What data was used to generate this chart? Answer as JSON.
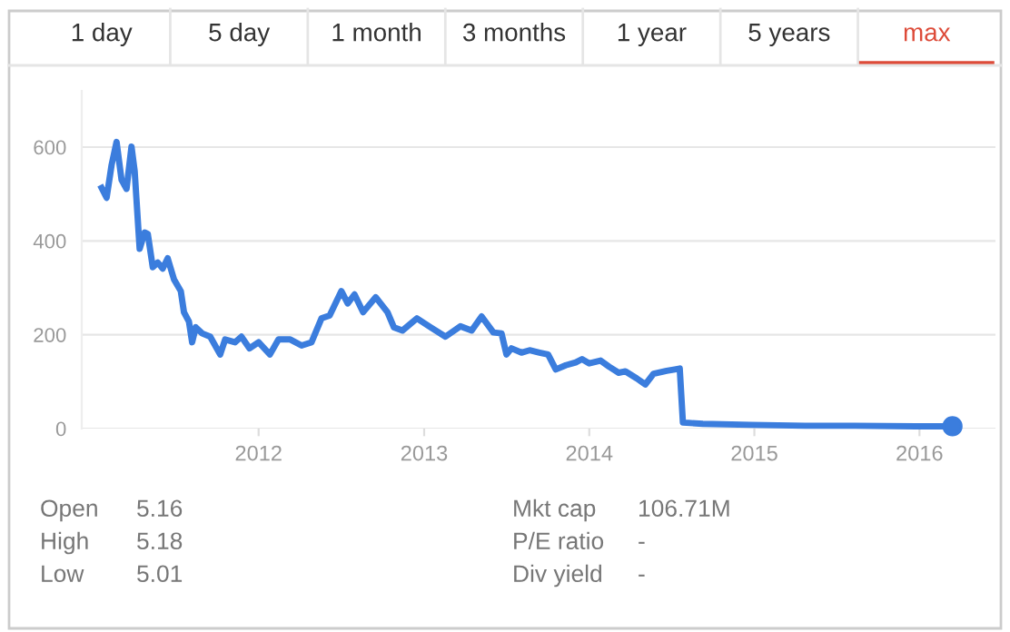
{
  "chart_data": {
    "type": "line",
    "grid": "y",
    "color": "#3b7ddd",
    "line_style": "solid",
    "xlim": [
      "2010-12-06",
      "2016-06-17"
    ],
    "ylim": [
      0,
      720
    ],
    "xticks": [
      {
        "value": "2012-01-01",
        "label": "2012"
      },
      {
        "value": "2013-01-01",
        "label": "2013"
      },
      {
        "value": "2014-01-01",
        "label": "2014"
      },
      {
        "value": "2015-01-01",
        "label": "2015"
      },
      {
        "value": "2016-01-01",
        "label": "2016"
      }
    ],
    "yticks": [
      0,
      200,
      400,
      600
    ],
    "x": [
      "2011-01-19",
      "2011-01-30",
      "2011-02-10",
      "2011-02-21",
      "2011-03-04",
      "2011-03-15",
      "2011-03-26",
      "2011-04-02",
      "2011-04-13",
      "2011-04-24",
      "2011-05-01",
      "2011-05-12",
      "2011-05-23",
      "2011-06-03",
      "2011-06-14",
      "2011-06-28",
      "2011-07-13",
      "2011-07-20",
      "2011-07-31",
      "2011-08-07",
      "2011-08-15",
      "2011-08-29",
      "2011-09-16",
      "2011-10-08",
      "2011-10-19",
      "2011-11-10",
      "2011-11-24",
      "2011-12-12",
      "2012-01-01",
      "2012-01-26",
      "2012-02-14",
      "2012-03-11",
      "2012-04-05",
      "2012-04-27",
      "2012-05-19",
      "2012-06-06",
      "2012-07-02",
      "2012-07-16",
      "2012-07-31",
      "2012-08-19",
      "2012-09-16",
      "2012-10-12",
      "2012-10-26",
      "2012-11-14",
      "2012-12-16",
      "2013-01-15",
      "2013-02-17",
      "2013-03-22",
      "2013-04-16",
      "2013-05-08",
      "2013-06-03",
      "2013-06-21",
      "2013-07-02",
      "2013-07-13",
      "2013-08-04",
      "2013-08-22",
      "2013-09-13",
      "2013-10-02",
      "2013-10-19",
      "2013-11-10",
      "2013-12-02",
      "2013-12-16",
      "2014-01-01",
      "2014-01-26",
      "2014-02-14",
      "2014-03-07",
      "2014-03-22",
      "2014-04-16",
      "2014-05-05",
      "2014-05-23",
      "2014-06-21",
      "2014-07-09",
      "2014-07-20",
      "2014-07-27",
      "2014-09-09",
      "2014-12-24",
      "2015-04-24",
      "2015-08-11",
      "2015-12-24",
      "2016-03-14"
    ],
    "values": [
      513,
      492,
      562,
      611,
      530,
      511,
      601,
      549,
      383,
      418,
      415,
      344,
      354,
      341,
      363,
      318,
      293,
      248,
      228,
      184,
      216,
      203,
      196,
      158,
      190,
      184,
      196,
      171,
      184,
      158,
      190,
      190,
      177,
      184,
      235,
      241,
      293,
      267,
      286,
      248,
      280,
      248,
      216,
      209,
      235,
      216,
      196,
      218,
      209,
      239,
      205,
      203,
      158,
      171,
      162,
      167,
      162,
      158,
      126,
      135,
      141,
      148,
      139,
      145,
      132,
      119,
      122,
      107,
      94,
      117,
      123,
      126,
      128,
      13,
      10,
      8,
      6,
      6,
      5,
      5
    ],
    "annotations": [
      "1 day",
      "5 day",
      "1 month",
      "3 months",
      "1 year",
      "5 years",
      "max",
      "Open",
      "5.16",
      "High",
      "5.18",
      "Low",
      "5.01",
      "Mkt cap",
      "106.71M",
      "P/E ratio",
      "-",
      "Div yield",
      "-"
    ]
  }
}
